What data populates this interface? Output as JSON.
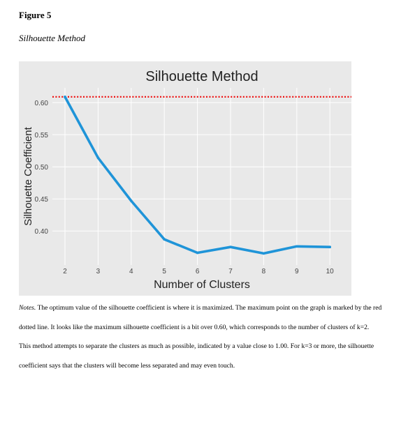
{
  "figure": {
    "number": "Figure 5",
    "caption": "Silhouette Method"
  },
  "chart_data": {
    "type": "line",
    "title": "Silhouette Method",
    "xlabel": "Number of Clusters",
    "ylabel": "Silhouette Coefficient",
    "x": [
      2,
      3,
      4,
      5,
      6,
      7,
      8,
      9,
      10
    ],
    "x_tick_labels": [
      "2",
      "3",
      "4",
      "5",
      "6",
      "7",
      "8",
      "9",
      "10"
    ],
    "y_ticks": [
      0.4,
      0.45,
      0.5,
      0.55,
      0.6
    ],
    "y_tick_labels": [
      "0.40",
      "0.45",
      "0.50",
      "0.55",
      "0.60"
    ],
    "series": [
      {
        "values": [
          0.609,
          0.514,
          0.447,
          0.387,
          0.366,
          0.375,
          0.365,
          0.376,
          0.375
        ],
        "color": "#1f94d8"
      }
    ],
    "reference_line": {
      "y": 0.609,
      "color": "#ee1111",
      "style": "dotted"
    },
    "xlim": [
      1.62,
      10.65
    ],
    "ylim": [
      0.347,
      0.623
    ],
    "grid": true,
    "background": "#e9e9e9"
  },
  "notes": {
    "lead": "Notes.",
    "text": " The optimum value of the silhouette coefficient is where it is maximized. The maximum point on the graph is marked by the red dotted line. It looks like the maximum silhouette coefficient is a bit over 0.60, which corresponds to the number of clusters of k=2. This method attempts to separate the clusters as much as possible, indicated by a value close to 1.00. For k=3 or more, the silhouette coefficient says that the clusters will become less separated and may even touch."
  }
}
